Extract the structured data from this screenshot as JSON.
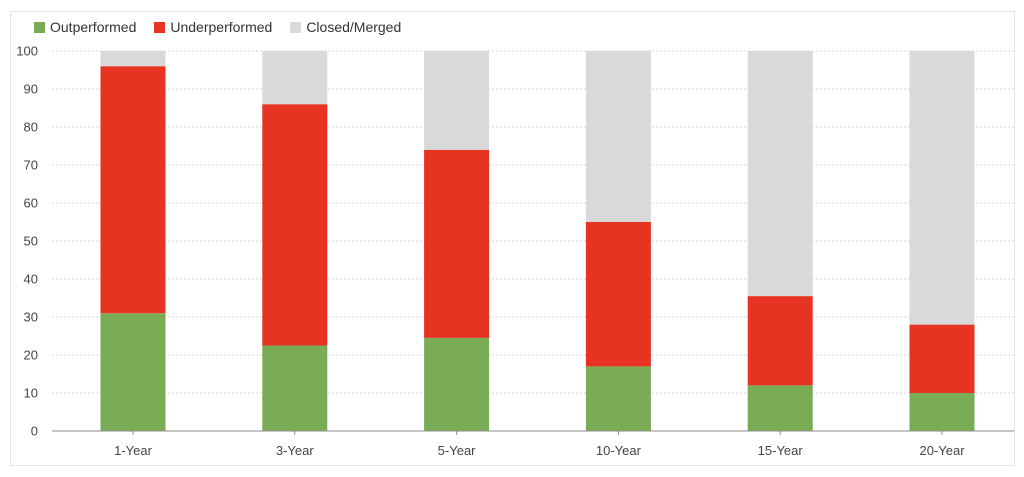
{
  "chart_data": {
    "type": "bar",
    "stacked": true,
    "categories": [
      "1-Year",
      "3-Year",
      "5-Year",
      "10-Year",
      "15-Year",
      "20-Year"
    ],
    "series": [
      {
        "name": "Outperformed",
        "color": "#7aab55",
        "values": [
          31,
          22.5,
          24.5,
          17,
          12,
          10
        ]
      },
      {
        "name": "Underperformed",
        "color": "#e63322",
        "values": [
          65,
          63.5,
          49.5,
          38,
          23.5,
          18
        ]
      },
      {
        "name": "Closed/Merged",
        "color": "#d9d9d9",
        "values": [
          4,
          14,
          26,
          45,
          64.5,
          72
        ]
      }
    ],
    "ylim": [
      0,
      100
    ],
    "yticks": [
      0,
      10,
      20,
      30,
      40,
      50,
      60,
      70,
      80,
      90,
      100
    ],
    "grid": true,
    "legend_position": "top-left",
    "title": "",
    "xlabel": "",
    "ylabel": ""
  }
}
